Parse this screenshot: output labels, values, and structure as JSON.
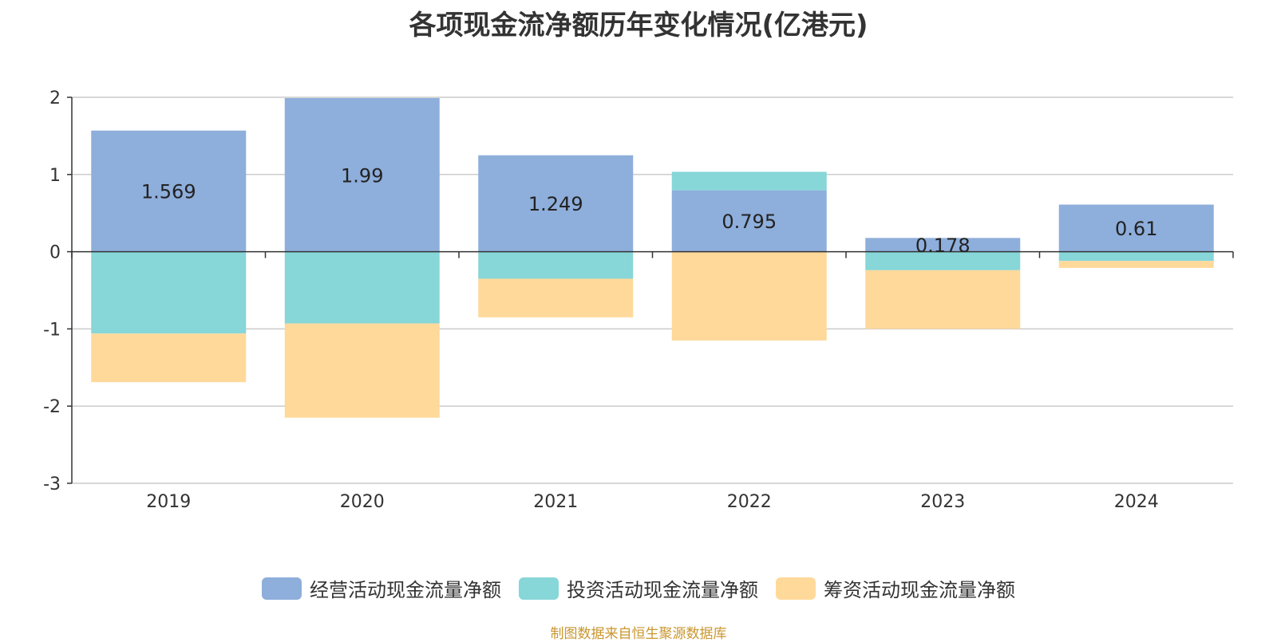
{
  "chart_data": {
    "type": "bar",
    "stacked": true,
    "title": "各项现金流净额历年变化情况(亿港元)",
    "categories": [
      "2019",
      "2020",
      "2021",
      "2022",
      "2023",
      "2024"
    ],
    "series": [
      {
        "name": "经营活动现金流量净额",
        "color": "#8eaedb",
        "values": [
          1.569,
          1.99,
          1.249,
          0.795,
          0.178,
          0.61
        ]
      },
      {
        "name": "投资活动现金流量净额",
        "color": "#87d6d8",
        "values": [
          -1.06,
          -0.93,
          -0.35,
          0.24,
          -0.24,
          -0.12
        ]
      },
      {
        "name": "筹资活动现金流量净额",
        "color": "#ffd99a",
        "values": [
          -0.63,
          -1.22,
          -0.5,
          -1.15,
          -0.76,
          -0.09
        ]
      }
    ],
    "data_labels": [
      "1.569",
      "1.99",
      "1.249",
      "0.795",
      "0.178",
      "0.61"
    ],
    "ylim": [
      -3,
      2
    ],
    "yticks": [
      2,
      1,
      0,
      -1,
      -2,
      -3
    ],
    "grid": true,
    "legend_position": "bottom"
  },
  "source_note": "制图数据来自恒生聚源数据库"
}
